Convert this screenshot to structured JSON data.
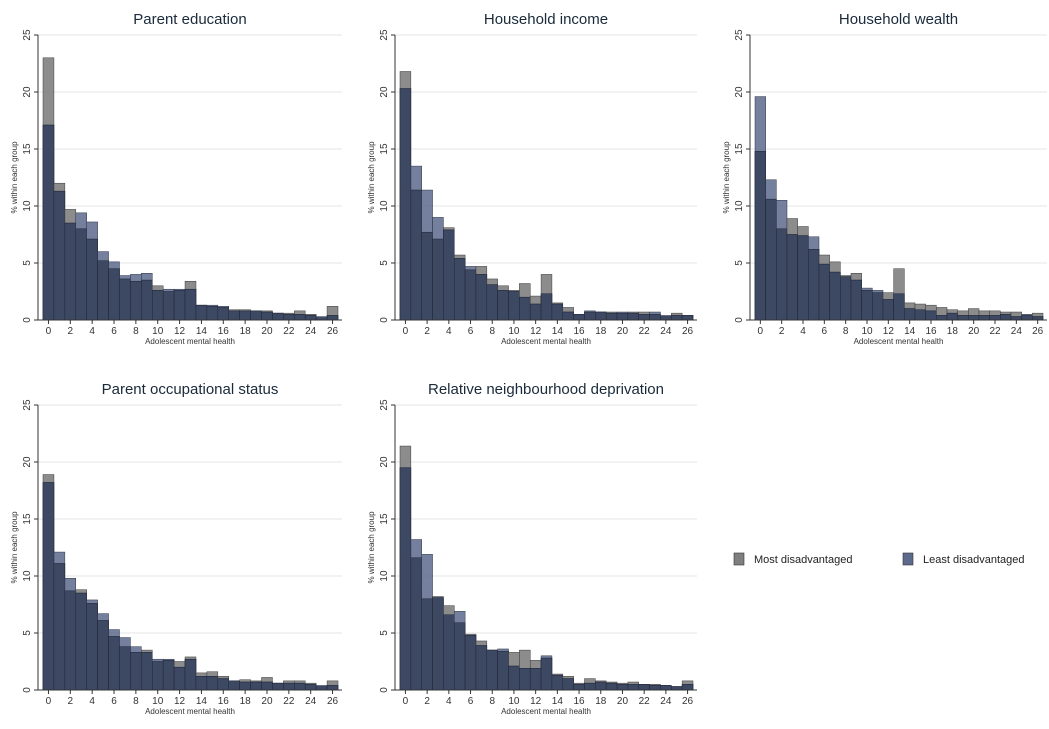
{
  "colors": {
    "most": "#7f7f7f",
    "least": "#5c6a8c",
    "overlap": "#3d4863",
    "grid": "#e6e6e6",
    "axis": "#333333"
  },
  "legend": {
    "placement": "right",
    "items": [
      {
        "label": "Most disadvantaged",
        "color": "#7f7f7f"
      },
      {
        "label": "Least disadvantaged",
        "color": "#5c6a8c"
      }
    ]
  },
  "chart_data": [
    {
      "type": "bar",
      "title": "Parent education",
      "xlabel": "Adolescent mental health",
      "ylabel": "% within each group",
      "ylim": [
        0,
        25
      ],
      "xlim": [
        0,
        26
      ],
      "x_ticks": [
        0,
        2,
        4,
        6,
        8,
        10,
        12,
        14,
        16,
        18,
        20,
        22,
        24,
        26
      ],
      "y_ticks": [
        0,
        5,
        10,
        15,
        20,
        25
      ],
      "grid": true,
      "x": [
        0,
        1,
        2,
        3,
        4,
        5,
        6,
        7,
        8,
        9,
        10,
        11,
        12,
        13,
        14,
        15,
        16,
        17,
        18,
        19,
        20,
        21,
        22,
        23,
        24,
        25,
        26
      ],
      "series": [
        {
          "name": "Most disadvantaged",
          "values": [
            23.0,
            12.0,
            9.7,
            8.0,
            7.1,
            5.2,
            4.5,
            3.6,
            3.4,
            3.5,
            3.0,
            2.5,
            2.6,
            3.4,
            1.3,
            1.2,
            1.1,
            0.9,
            0.9,
            0.8,
            0.8,
            0.6,
            0.6,
            0.8,
            0.5,
            0.2,
            1.2
          ]
        },
        {
          "name": "Least disadvantaged",
          "values": [
            17.1,
            11.3,
            8.5,
            9.4,
            8.6,
            6.0,
            5.1,
            3.9,
            4.0,
            4.1,
            2.6,
            2.7,
            2.7,
            2.7,
            1.3,
            1.3,
            1.2,
            0.8,
            0.8,
            0.8,
            0.7,
            0.6,
            0.5,
            0.5,
            0.4,
            0.3,
            0.4
          ]
        }
      ]
    },
    {
      "type": "bar",
      "title": "Household income",
      "xlabel": "Adolescent mental health",
      "ylabel": "% within each group",
      "ylim": [
        0,
        25
      ],
      "xlim": [
        0,
        26
      ],
      "x_ticks": [
        0,
        2,
        4,
        6,
        8,
        10,
        12,
        14,
        16,
        18,
        20,
        22,
        24,
        26
      ],
      "y_ticks": [
        0,
        5,
        10,
        15,
        20,
        25
      ],
      "grid": true,
      "x": [
        0,
        1,
        2,
        3,
        4,
        5,
        6,
        7,
        8,
        9,
        10,
        11,
        12,
        13,
        14,
        15,
        16,
        17,
        18,
        19,
        20,
        21,
        22,
        23,
        24,
        25,
        26
      ],
      "series": [
        {
          "name": "Most disadvantaged",
          "values": [
            21.8,
            11.4,
            7.7,
            7.1,
            8.1,
            5.7,
            4.4,
            4.7,
            3.6,
            3.0,
            2.6,
            3.2,
            2.1,
            4.0,
            1.5,
            1.1,
            0.5,
            0.7,
            0.7,
            0.7,
            0.6,
            0.7,
            0.7,
            0.5,
            0.3,
            0.6,
            0.4
          ]
        },
        {
          "name": "Least disadvantaged",
          "values": [
            20.3,
            13.5,
            11.4,
            9.0,
            7.9,
            5.4,
            4.7,
            4.0,
            3.1,
            2.6,
            2.5,
            2.0,
            1.4,
            2.3,
            1.4,
            0.7,
            0.5,
            0.8,
            0.7,
            0.6,
            0.7,
            0.6,
            0.5,
            0.7,
            0.4,
            0.4,
            0.4
          ]
        }
      ]
    },
    {
      "type": "bar",
      "title": "Household wealth",
      "xlabel": "Adolescent mental health",
      "ylabel": "% within each group",
      "ylim": [
        0,
        25
      ],
      "xlim": [
        0,
        26
      ],
      "x_ticks": [
        0,
        2,
        4,
        6,
        8,
        10,
        12,
        14,
        16,
        18,
        20,
        22,
        24,
        26
      ],
      "y_ticks": [
        0,
        5,
        10,
        15,
        20,
        25
      ],
      "grid": true,
      "x": [
        0,
        1,
        2,
        3,
        4,
        5,
        6,
        7,
        8,
        9,
        10,
        11,
        12,
        13,
        14,
        15,
        16,
        17,
        18,
        19,
        20,
        21,
        22,
        23,
        24,
        25,
        26
      ],
      "series": [
        {
          "name": "Most disadvantaged",
          "values": [
            14.8,
            10.6,
            8.0,
            8.9,
            8.2,
            6.2,
            5.7,
            5.1,
            3.9,
            4.1,
            2.6,
            2.4,
            2.4,
            4.5,
            1.5,
            1.4,
            1.3,
            1.1,
            0.9,
            0.8,
            1.0,
            0.8,
            0.8,
            0.7,
            0.7,
            0.4,
            0.6
          ]
        },
        {
          "name": "Least disadvantaged",
          "values": [
            19.6,
            12.3,
            10.5,
            7.5,
            7.4,
            7.3,
            4.9,
            4.2,
            3.8,
            3.5,
            2.8,
            2.6,
            1.8,
            2.3,
            1.0,
            0.9,
            0.8,
            0.4,
            0.6,
            0.4,
            0.4,
            0.4,
            0.4,
            0.5,
            0.3,
            0.5,
            0.3
          ]
        }
      ]
    },
    {
      "type": "bar",
      "title": "Parent occupational status",
      "xlabel": "Adolescent mental health",
      "ylabel": "% within each group",
      "ylim": [
        0,
        25
      ],
      "xlim": [
        0,
        26
      ],
      "x_ticks": [
        0,
        2,
        4,
        6,
        8,
        10,
        12,
        14,
        16,
        18,
        20,
        22,
        24,
        26
      ],
      "y_ticks": [
        0,
        5,
        10,
        15,
        20,
        25
      ],
      "grid": true,
      "x": [
        0,
        1,
        2,
        3,
        4,
        5,
        6,
        7,
        8,
        9,
        10,
        11,
        12,
        13,
        14,
        15,
        16,
        17,
        18,
        19,
        20,
        21,
        22,
        23,
        24,
        25,
        26
      ],
      "series": [
        {
          "name": "Most disadvantaged",
          "values": [
            18.9,
            11.1,
            8.7,
            8.8,
            7.6,
            6.1,
            4.7,
            3.8,
            3.3,
            3.5,
            2.5,
            2.6,
            2.5,
            2.9,
            1.5,
            1.6,
            1.2,
            0.8,
            0.9,
            0.8,
            1.1,
            0.6,
            0.8,
            0.8,
            0.6,
            0.3,
            0.8
          ]
        },
        {
          "name": "Least disadvantaged",
          "values": [
            18.2,
            12.1,
            9.8,
            8.5,
            7.9,
            6.7,
            5.3,
            4.6,
            3.8,
            3.3,
            2.7,
            2.7,
            2.0,
            2.7,
            1.2,
            1.2,
            1.0,
            0.8,
            0.7,
            0.7,
            0.7,
            0.6,
            0.6,
            0.6,
            0.5,
            0.4,
            0.4
          ]
        }
      ]
    },
    {
      "type": "bar",
      "title": "Relative neighbourhood deprivation",
      "xlabel": "Adolescent mental health",
      "ylabel": "% within each group",
      "ylim": [
        0,
        25
      ],
      "xlim": [
        0,
        26
      ],
      "x_ticks": [
        0,
        2,
        4,
        6,
        8,
        10,
        12,
        14,
        16,
        18,
        20,
        22,
        24,
        26
      ],
      "y_ticks": [
        0,
        5,
        10,
        15,
        20,
        25
      ],
      "grid": true,
      "x": [
        0,
        1,
        2,
        3,
        4,
        5,
        6,
        7,
        8,
        9,
        10,
        11,
        12,
        13,
        14,
        15,
        16,
        17,
        18,
        19,
        20,
        21,
        22,
        23,
        24,
        25,
        26
      ],
      "series": [
        {
          "name": "Most disadvantaged",
          "values": [
            21.4,
            11.6,
            8.0,
            8.2,
            7.4,
            5.9,
            4.9,
            4.3,
            3.5,
            3.4,
            3.3,
            3.5,
            2.6,
            2.8,
            1.4,
            1.2,
            0.6,
            1.0,
            0.8,
            0.7,
            0.6,
            0.7,
            0.5,
            0.5,
            0.4,
            0.3,
            0.8
          ]
        },
        {
          "name": "Least disadvantaged",
          "values": [
            19.5,
            13.2,
            11.9,
            8.1,
            6.6,
            6.9,
            4.8,
            3.9,
            3.5,
            3.6,
            2.1,
            1.9,
            1.9,
            3.0,
            1.3,
            1.0,
            0.5,
            0.6,
            0.7,
            0.6,
            0.5,
            0.5,
            0.5,
            0.4,
            0.4,
            0.3,
            0.5
          ]
        }
      ]
    }
  ]
}
